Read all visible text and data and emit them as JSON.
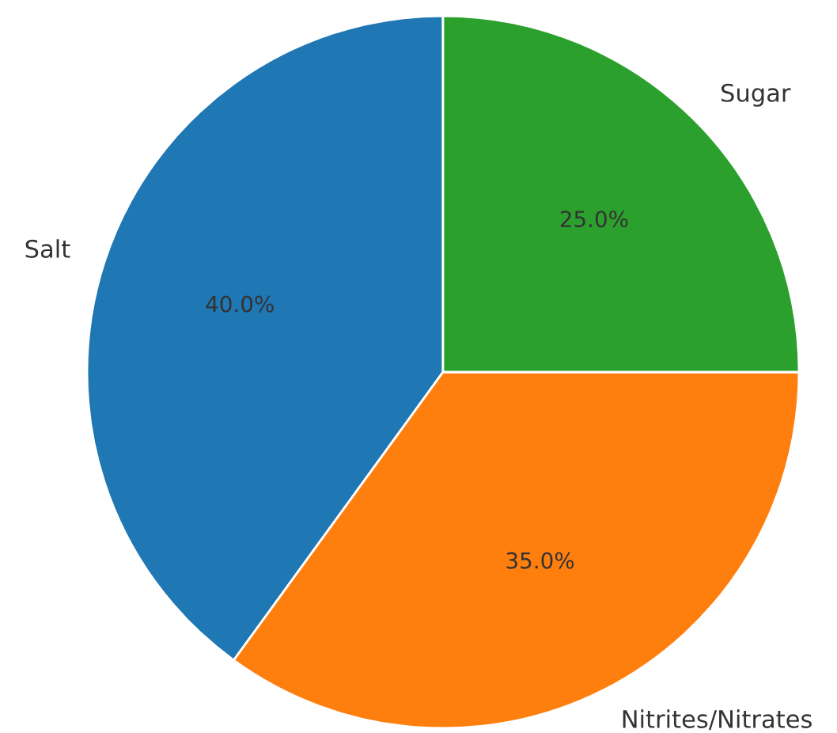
{
  "chart_data": {
    "type": "pie",
    "categories": [
      "Salt",
      "Nitrites/Nitrates",
      "Sugar"
    ],
    "values": [
      40,
      35,
      25
    ],
    "colors": [
      "#1f77b4",
      "#ff7f0e",
      "#2ca02c"
    ],
    "value_labels": [
      "40.0%",
      "35.0%",
      "25.0%"
    ]
  }
}
